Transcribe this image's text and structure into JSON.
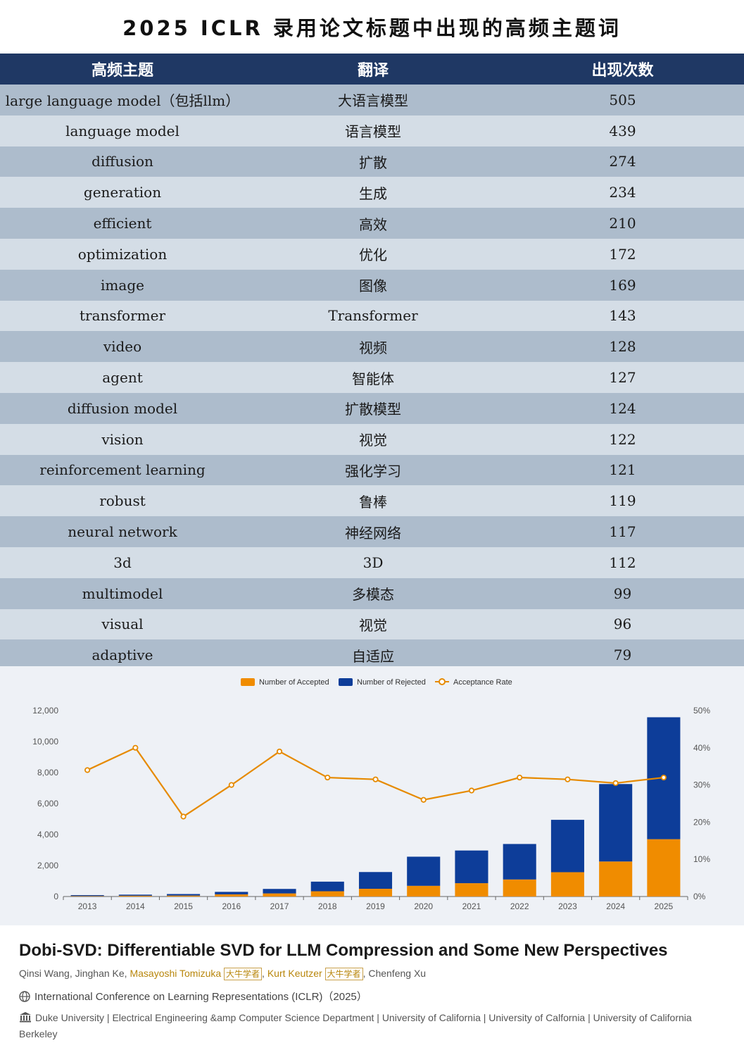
{
  "title": "2025 ICLR 录用论文标题中出现的高频主题词",
  "table": {
    "headers": [
      "高频主题",
      "翻译",
      "出现次数"
    ],
    "rows": [
      {
        "term": "large language model（包括llm）",
        "translation": "大语言模型",
        "count": "505"
      },
      {
        "term": "language model",
        "translation": "语言模型",
        "count": "439"
      },
      {
        "term": "diffusion",
        "translation": "扩散",
        "count": "274"
      },
      {
        "term": "generation",
        "translation": "生成",
        "count": "234"
      },
      {
        "term": "efficient",
        "translation": "高效",
        "count": "210"
      },
      {
        "term": "optimization",
        "translation": "优化",
        "count": "172"
      },
      {
        "term": "image",
        "translation": "图像",
        "count": "169"
      },
      {
        "term": "transformer",
        "translation": "Transformer",
        "count": "143"
      },
      {
        "term": "video",
        "translation": "视频",
        "count": "128"
      },
      {
        "term": "agent",
        "translation": "智能体",
        "count": "127"
      },
      {
        "term": "diffusion model",
        "translation": "扩散模型",
        "count": "124"
      },
      {
        "term": "vision",
        "translation": "视觉",
        "count": "122"
      },
      {
        "term": "reinforcement learning",
        "translation": "强化学习",
        "count": "121"
      },
      {
        "term": "robust",
        "translation": "鲁棒",
        "count": "119"
      },
      {
        "term": "neural network",
        "translation": "神经网络",
        "count": "117"
      },
      {
        "term": "3d",
        "translation": "3D",
        "count": "112"
      },
      {
        "term": "multimodel",
        "translation": "多模态",
        "count": "99"
      },
      {
        "term": "visual",
        "translation": "视觉",
        "count": "96"
      },
      {
        "term": "adaptive",
        "translation": "自适应",
        "count": "79"
      }
    ]
  },
  "chart_data": {
    "type": "bar",
    "stacked": true,
    "categories": [
      "2013",
      "2014",
      "2015",
      "2016",
      "2017",
      "2018",
      "2019",
      "2020",
      "2021",
      "2022",
      "2023",
      "2024",
      "2025"
    ],
    "series": [
      {
        "name": "Number of Accepted",
        "type": "bar",
        "axis": "left",
        "color": "#f08c00",
        "values": [
          30,
          50,
          60,
          140,
          200,
          340,
          500,
          690,
          860,
          1100,
          1570,
          2260,
          3700
        ]
      },
      {
        "name": "Number of Rejected",
        "type": "bar",
        "axis": "left",
        "color": "#0d3d99",
        "values": [
          60,
          70,
          100,
          160,
          290,
          620,
          1080,
          1880,
          2110,
          2290,
          3380,
          5000,
          7870
        ]
      },
      {
        "name": "Acceptance Rate",
        "type": "line",
        "axis": "right",
        "color": "#e68a00",
        "values": [
          34,
          40,
          21.5,
          30,
          39,
          32,
          31.5,
          26,
          28.5,
          32,
          31.5,
          30.5,
          32
        ]
      }
    ],
    "yleft": {
      "ticks": [
        "0",
        "2,000",
        "4,000",
        "6,000",
        "8,000",
        "10,000",
        "12,000"
      ],
      "lim": [
        0,
        12000
      ]
    },
    "yright": {
      "ticks": [
        "0%",
        "10%",
        "20%",
        "30%",
        "40%",
        "50%"
      ],
      "lim": [
        0,
        50
      ]
    },
    "legend_position": "top",
    "grid": false
  },
  "paper": {
    "title": "Dobi-SVD: Differentiable SVD for LLM Compression and Some New Perspectives",
    "author1": "Qinsi Wang, Jinghan Ke, ",
    "author2": "Masayoshi Tomizuka",
    "tag1": "大牛学者",
    "sep": ", ",
    "author3": "Kurt Keutzer",
    "tag2": "大牛学者",
    "author4": ", Chenfeng Xu",
    "venue": "International Conference on Learning Representations (ICLR)（2025）",
    "affiliation": "Duke University | Electrical Engineering &amp Computer Science Department | University of California | University of Calfornia | University of California Berkeley"
  }
}
